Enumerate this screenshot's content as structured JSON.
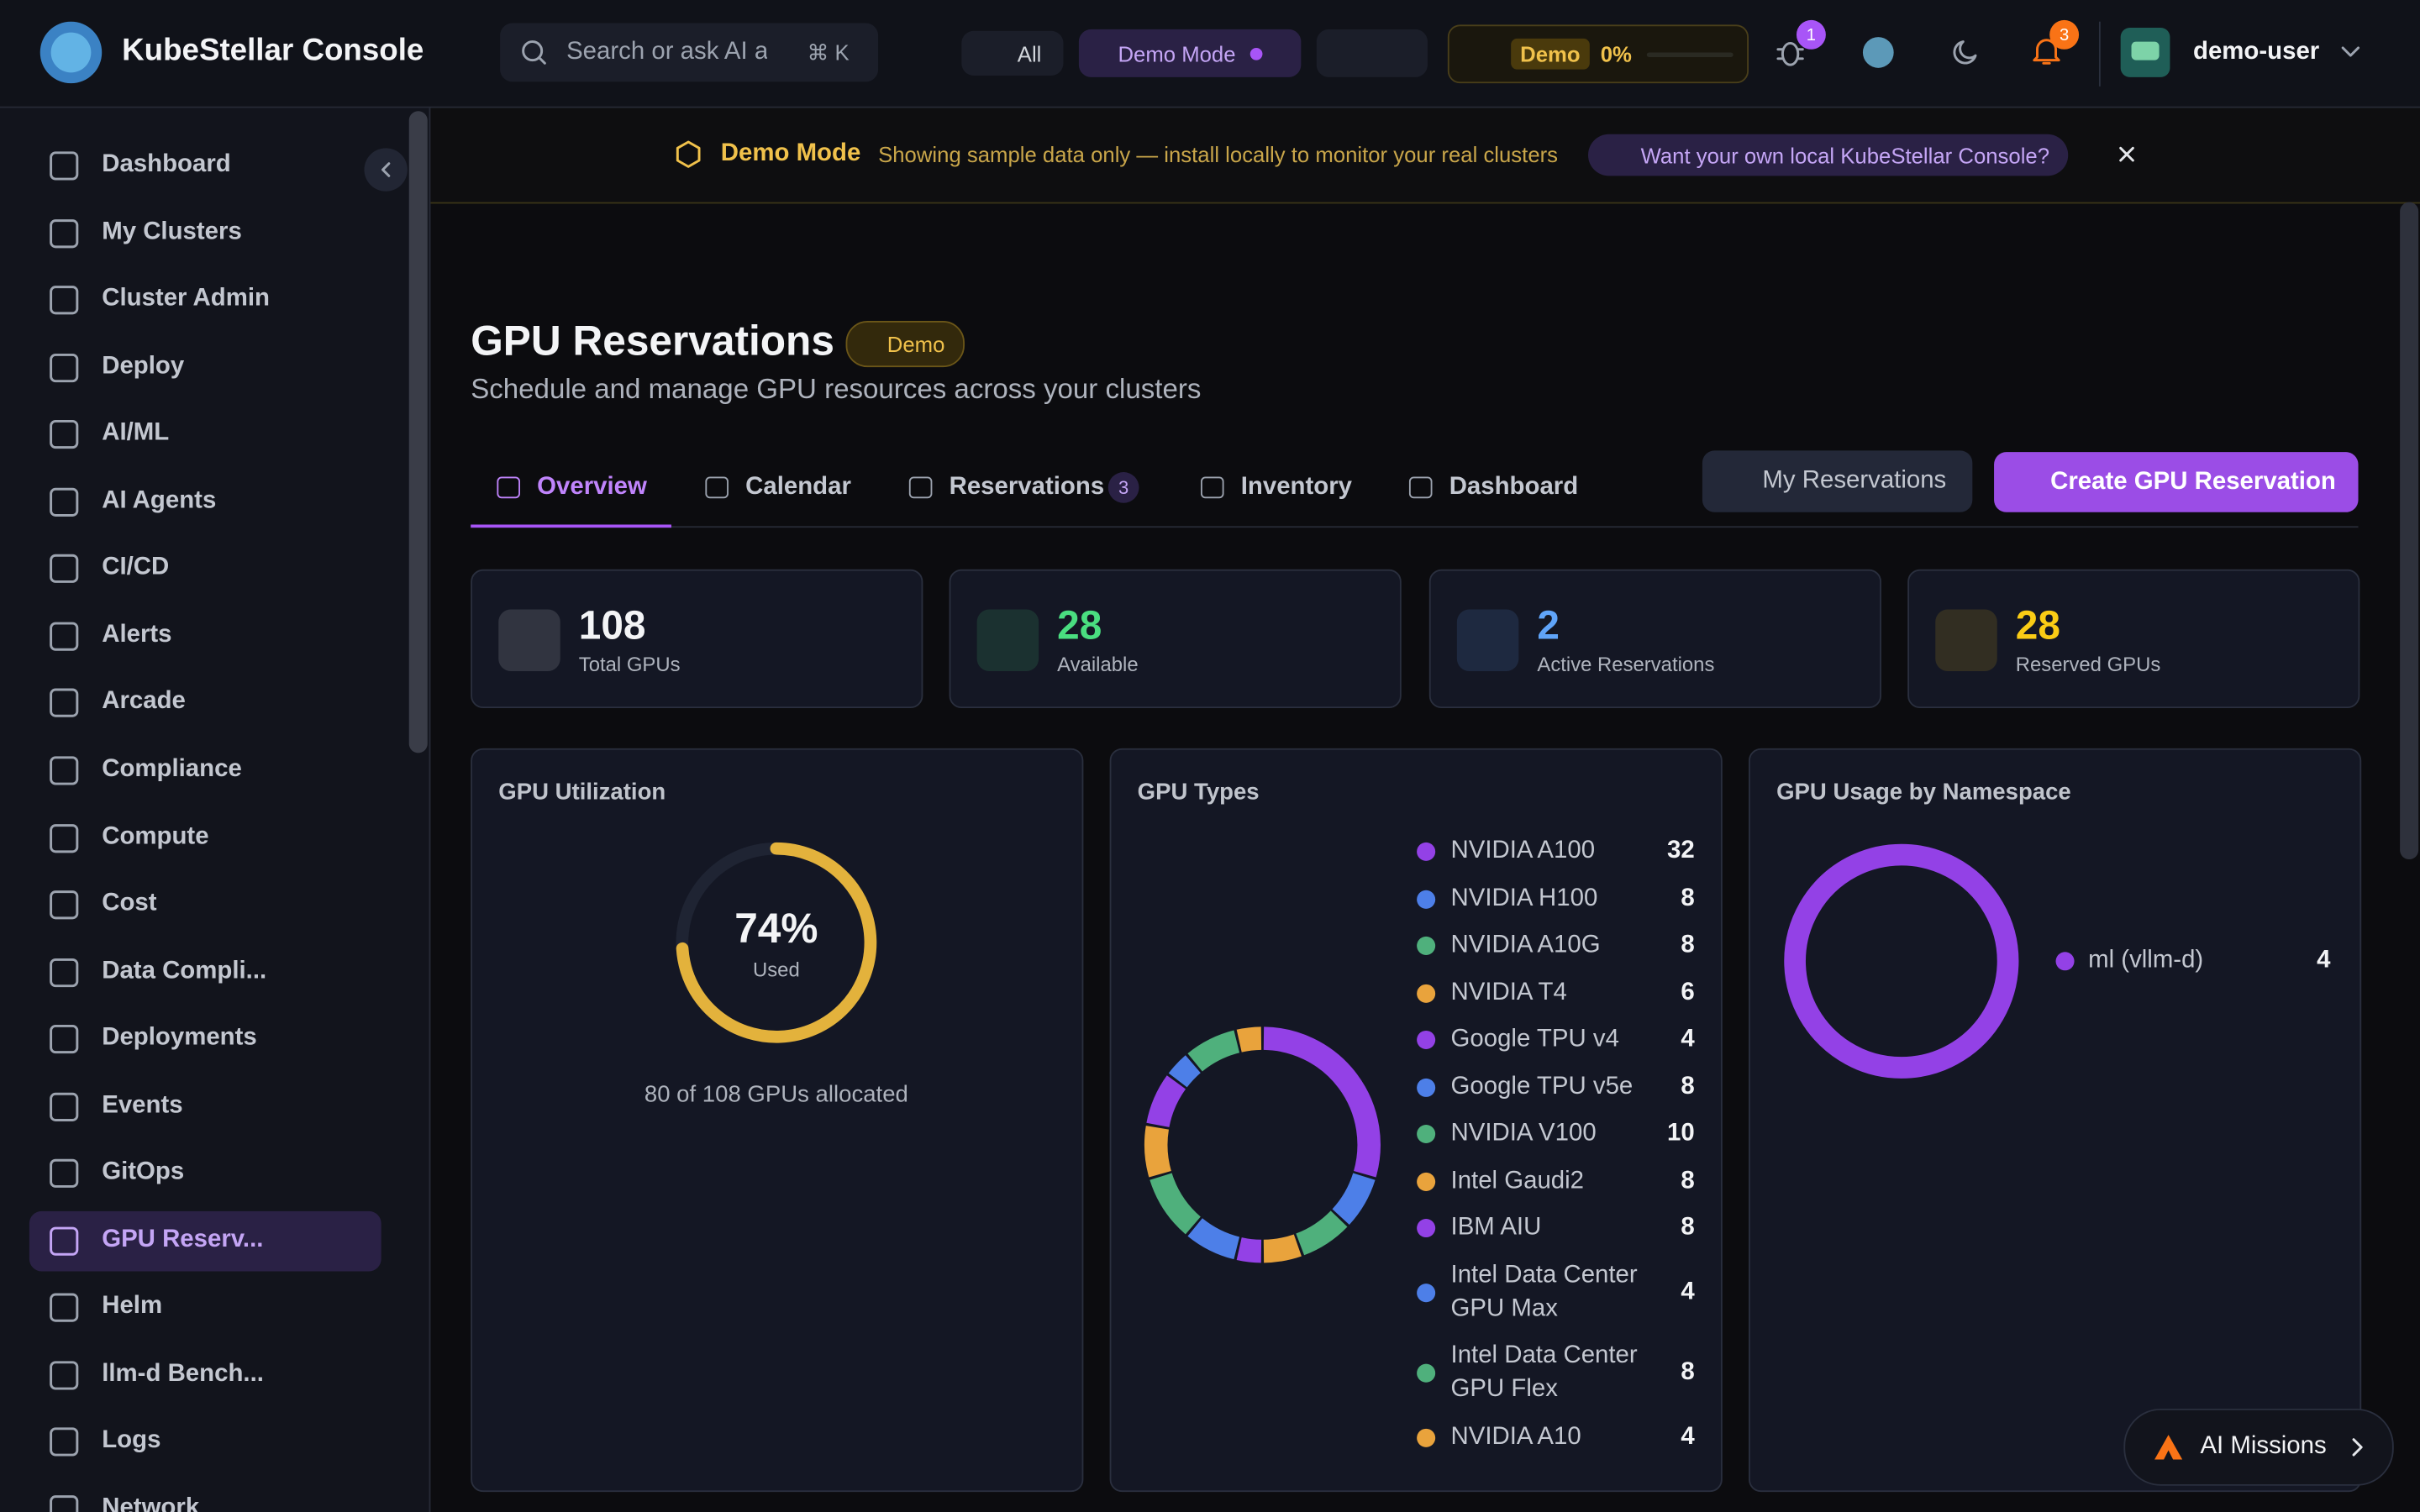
{
  "app": {
    "title": "KubeStellar Console",
    "search_placeholder": "Search or ask AI a",
    "search_shortcut": "⌘ K",
    "filter": "All",
    "demo_mode": "Demo Mode",
    "demo_badge": "Demo",
    "demo_percent": "0%",
    "bug_count": "1",
    "notification_count": "3",
    "user": "demo-user"
  },
  "sidebar": {
    "active": 16,
    "items": [
      "Dashboard",
      "My Clusters",
      "Cluster Admin",
      "Deploy",
      "AI/ML",
      "AI Agents",
      "CI/CD",
      "Alerts",
      "Arcade",
      "Compliance",
      "Compute",
      "Cost",
      "Data Compli...",
      "Deployments",
      "Events",
      "GitOps",
      "GPU Reserv...",
      "Helm",
      "llm-d Bench...",
      "Logs",
      "Network"
    ]
  },
  "banner": {
    "title": "Demo Mode",
    "text": "Showing sample data only — install locally to monitor your real clusters",
    "cta": "Want your own local KubeStellar Console?"
  },
  "page": {
    "title": "GPU Reservations",
    "badge": "Demo",
    "subtitle": "Schedule and manage GPU resources across your clusters"
  },
  "tabs": [
    {
      "label": "Overview"
    },
    {
      "label": "Calendar"
    },
    {
      "label": "Reservations",
      "count": 3
    },
    {
      "label": "Inventory"
    },
    {
      "label": "Dashboard"
    }
  ],
  "actions": {
    "my_reservations": "My Reservations",
    "create": "Create GPU Reservation"
  },
  "stats": [
    {
      "value": 108,
      "label": "Total GPUs",
      "color": "#f3f4f6"
    },
    {
      "value": 28,
      "label": "Available",
      "color": "#4ade80"
    },
    {
      "value": 2,
      "label": "Active Reservations",
      "color": "#60a5fa"
    },
    {
      "value": 28,
      "label": "Reserved GPUs",
      "color": "#facc15"
    }
  ],
  "utilization": {
    "title": "GPU Utilization",
    "percent": 74,
    "percent_label": "74%",
    "sub": "Used",
    "caption": "80 of 108 GPUs allocated",
    "color": "#e3b23c"
  },
  "gpu_types": {
    "title": "GPU Types",
    "items": [
      {
        "name": "NVIDIA A100",
        "count": 32,
        "color": "#9341e6"
      },
      {
        "name": "NVIDIA H100",
        "count": 8,
        "color": "#4d7fe8"
      },
      {
        "name": "NVIDIA A10G",
        "count": 8,
        "color": "#4fb07c"
      },
      {
        "name": "NVIDIA T4",
        "count": 6,
        "color": "#e9a33c"
      },
      {
        "name": "Google TPU v4",
        "count": 4,
        "color": "#9341e6"
      },
      {
        "name": "Google TPU v5e",
        "count": 8,
        "color": "#4d7fe8"
      },
      {
        "name": "NVIDIA V100",
        "count": 10,
        "color": "#4fb07c"
      },
      {
        "name": "Intel Gaudi2",
        "count": 8,
        "color": "#e9a33c"
      },
      {
        "name": "IBM AIU",
        "count": 8,
        "color": "#9341e6"
      },
      {
        "name": "Intel Data Center GPU Max",
        "count": 4,
        "color": "#4d7fe8"
      },
      {
        "name": "Intel Data Center GPU Flex",
        "count": 8,
        "color": "#4fb07c"
      },
      {
        "name": "NVIDIA A10",
        "count": 4,
        "color": "#e9a33c"
      }
    ]
  },
  "namespace": {
    "title": "GPU Usage by Namespace",
    "items": [
      {
        "name": "ml (vllm-d)",
        "count": 4,
        "color": "#9341e6"
      }
    ]
  },
  "ai_missions": "AI Missions"
}
